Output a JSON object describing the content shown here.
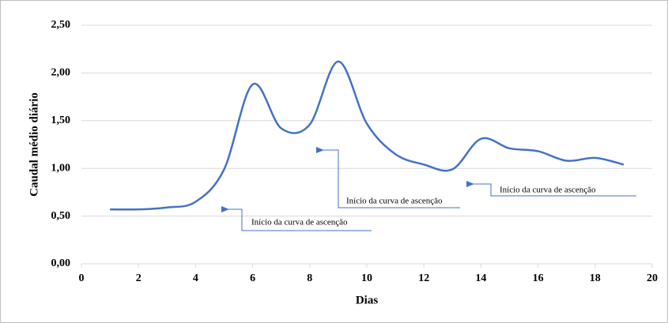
{
  "chart_data": {
    "type": "line",
    "x_label": "Dias",
    "y_label": "Caudal médio diário",
    "x": [
      1,
      2,
      3,
      4,
      5,
      6,
      7,
      8,
      9,
      10,
      11,
      12,
      13,
      14,
      15,
      16,
      17,
      18,
      19
    ],
    "series": [
      {
        "color": "#4472c4",
        "values": [
          0.57,
          0.57,
          0.59,
          0.65,
          0.99,
          1.88,
          1.42,
          1.46,
          2.12,
          1.47,
          1.15,
          1.04,
          0.99,
          1.31,
          1.21,
          1.18,
          1.08,
          1.11,
          1.04
        ]
      }
    ],
    "xlim": [
      0,
      20
    ],
    "xticks": [
      0,
      2,
      4,
      6,
      8,
      10,
      12,
      14,
      16,
      18,
      20
    ],
    "ylim": [
      0,
      2.5
    ],
    "yticks": [
      {
        "value": 0,
        "label": "0,00"
      },
      {
        "value": 0.5,
        "label": "0,50"
      },
      {
        "value": 1,
        "label": "1,00"
      },
      {
        "value": 1.5,
        "label": "1,50"
      },
      {
        "value": 2,
        "label": "2,00"
      },
      {
        "value": 2.5,
        "label": "2,50"
      }
    ],
    "grid": true,
    "annotations": [
      "Início da curva de ascenção",
      "Início da curva de ascenção",
      "Início da curva de ascenção"
    ]
  }
}
